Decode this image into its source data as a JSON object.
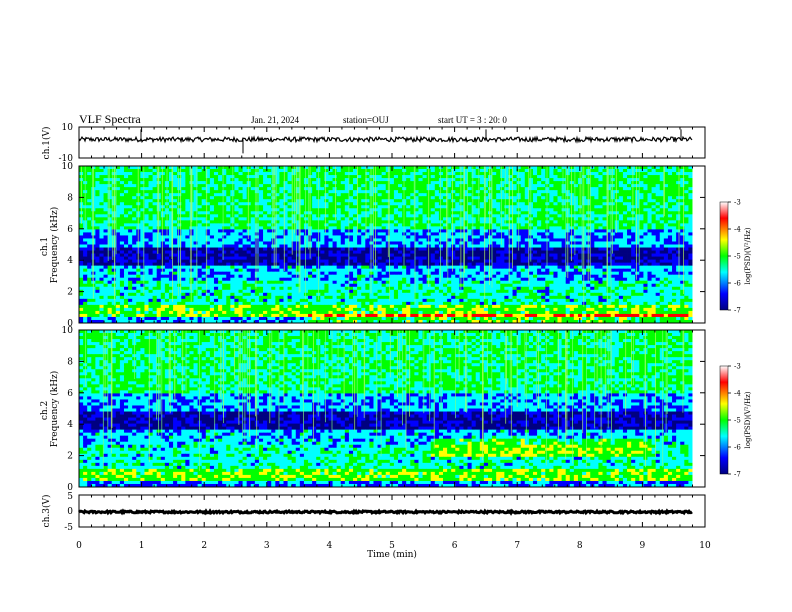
{
  "header": {
    "title": "VLF Spectra",
    "date": "Jan. 21, 2024",
    "station": "station=OUJ",
    "start_ut": "start UT =  3 : 20: 0"
  },
  "colors": {
    "spectrogram_scale": [
      "#000080",
      "#0000ff",
      "#00ffff",
      "#00ff00",
      "#ffff00",
      "#ff0000",
      "#ffffff"
    ],
    "trace": "#000000"
  },
  "chart_data": [
    {
      "type": "line",
      "panel": "ch1-waveform",
      "ylabel": "ch.1(V)",
      "ylim": [
        -10,
        10
      ],
      "y_ticks": [
        "10",
        "-10"
      ],
      "x_range_min": [
        0,
        9.8
      ],
      "mean_value": 2,
      "noise_amplitude": 1.5
    },
    {
      "type": "heatmap",
      "panel": "ch1-spectrogram",
      "ylabel": "ch.1\nFrequency (kHz)",
      "ylim": [
        0,
        10
      ],
      "y_ticks": [
        "0",
        "2",
        "4",
        "6",
        "8",
        "10"
      ],
      "x_range_min": [
        0,
        9.8
      ],
      "colorbar": {
        "label": "log(PSD)(V²/Hz)",
        "range": [
          -7,
          -3
        ],
        "ticks": [
          "-3",
          "-4",
          "-5",
          "-6",
          "-7"
        ]
      }
    },
    {
      "type": "heatmap",
      "panel": "ch2-spectrogram",
      "ylabel": "ch.2\nFrequency (kHz)",
      "ylim": [
        0,
        10
      ],
      "y_ticks": [
        "0",
        "2",
        "4",
        "6",
        "8",
        "10"
      ],
      "x_range_min": [
        0,
        9.8
      ],
      "colorbar": {
        "label": "log(PSD)(V²/Hz)",
        "range": [
          -7,
          -3
        ],
        "ticks": [
          "-3",
          "-4",
          "-5",
          "-6",
          "-7"
        ]
      }
    },
    {
      "type": "line",
      "panel": "ch3-waveform",
      "ylabel": "ch.3(V)",
      "ylim": [
        -5,
        5
      ],
      "y_ticks": [
        "5",
        "0",
        "-5"
      ],
      "x_range_min": [
        0,
        9.8
      ],
      "mean_value": -0.3,
      "noise_amplitude": 0.3
    }
  ],
  "x_axis": {
    "label": "Time (min)",
    "range": [
      0,
      10
    ],
    "ticks": [
      "0",
      "1",
      "2",
      "3",
      "4",
      "5",
      "6",
      "7",
      "8",
      "9",
      "10"
    ]
  }
}
